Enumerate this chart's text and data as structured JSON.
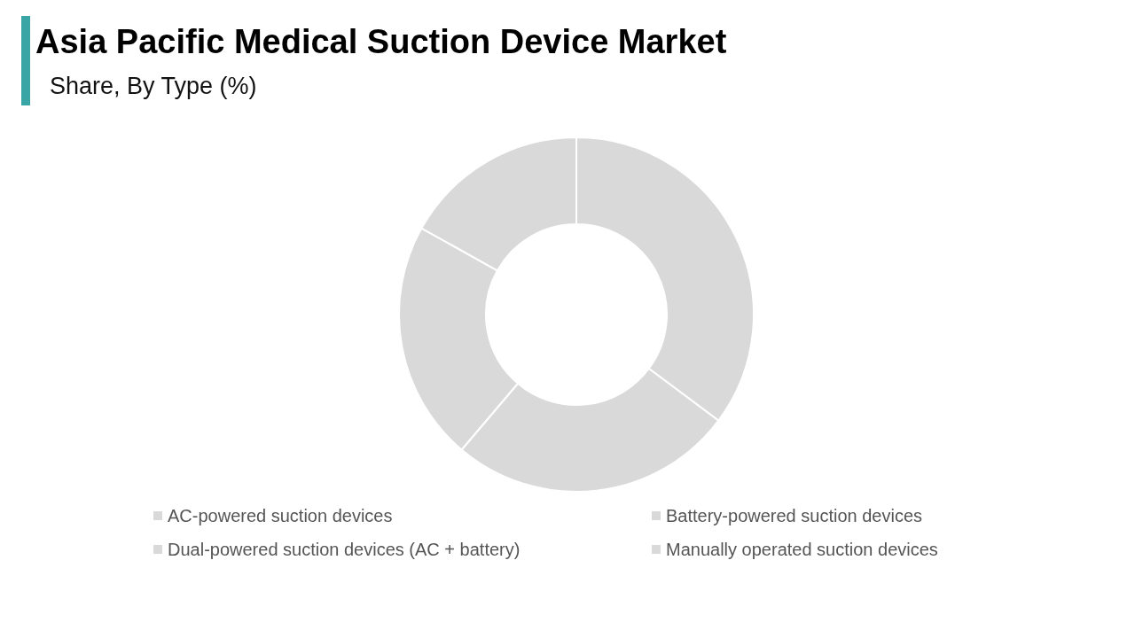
{
  "chart_data": {
    "type": "donut",
    "title": "Asia Pacific Medical Suction Device Market",
    "subtitle": "Share, By Type (%)",
    "categories": [
      "AC-powered suction devices",
      "Battery-powered suction devices",
      "Dual-powered suction devices (AC + battery)",
      "Manually operated suction devices"
    ],
    "values": [
      35.2,
      26.0,
      21.9,
      16.9
    ],
    "colors": [
      "#d9d9d9",
      "#d9d9d9",
      "#d9d9d9",
      "#d9d9d9"
    ],
    "legend": "bottom"
  }
}
